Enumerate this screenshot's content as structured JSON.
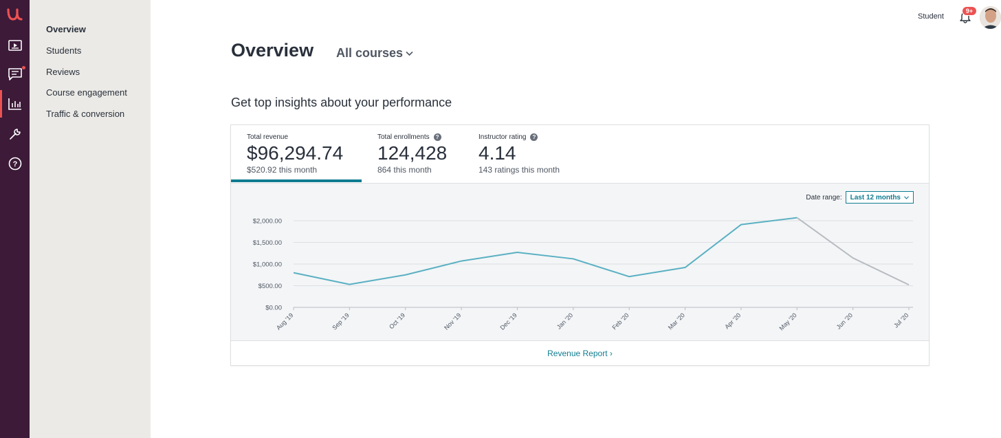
{
  "nav": {
    "items": [
      {
        "label": "Overview",
        "active": true
      },
      {
        "label": "Students",
        "active": false
      },
      {
        "label": "Reviews",
        "active": false
      },
      {
        "label": "Course engagement",
        "active": false
      },
      {
        "label": "Traffic & conversion",
        "active": false
      }
    ]
  },
  "rail": {
    "icons": [
      "logo-icon",
      "courses-icon",
      "messages-icon",
      "performance-icon",
      "tools-icon",
      "help-icon"
    ],
    "active": "performance-icon"
  },
  "header": {
    "role_link": "Student",
    "notification_badge": "9+"
  },
  "page": {
    "title": "Overview",
    "course_filter": "All courses",
    "subtitle": "Get top insights about your performance"
  },
  "stats": [
    {
      "label": "Total revenue",
      "value": "$96,294.74",
      "sub": "$520.92 this month",
      "help": false
    },
    {
      "label": "Total enrollments",
      "value": "124,428",
      "sub": "864 this month",
      "help": true
    },
    {
      "label": "Instructor rating",
      "value": "4.14",
      "sub": "143 ratings this month",
      "help": true
    }
  ],
  "date_range": {
    "label": "Date range:",
    "selected": "Last 12 months"
  },
  "report_link": "Revenue Report ›",
  "colors": {
    "accent": "#0f7c90",
    "line": "#5ab0c2",
    "line_partial": "#b8bcc0",
    "rail": "#3c1a38",
    "alert": "#ec5252"
  },
  "chart_data": {
    "type": "line",
    "categories": [
      "Aug '19",
      "Sep '19",
      "Oct '19",
      "Nov '19",
      "Dec '19",
      "Jan '20",
      "Feb '20",
      "Mar '20",
      "Apr '20",
      "May '20",
      "Jun '20",
      "Jul '20"
    ],
    "values": [
      800,
      530,
      750,
      1070,
      1270,
      1120,
      710,
      920,
      1910,
      2070,
      1140,
      520
    ],
    "complete_through_index": 9,
    "ylim": [
      0,
      2000
    ],
    "yticks": [
      "$0.00",
      "$500.00",
      "$1,000.00",
      "$1,500.00",
      "$2,000.00"
    ],
    "grid": true
  }
}
